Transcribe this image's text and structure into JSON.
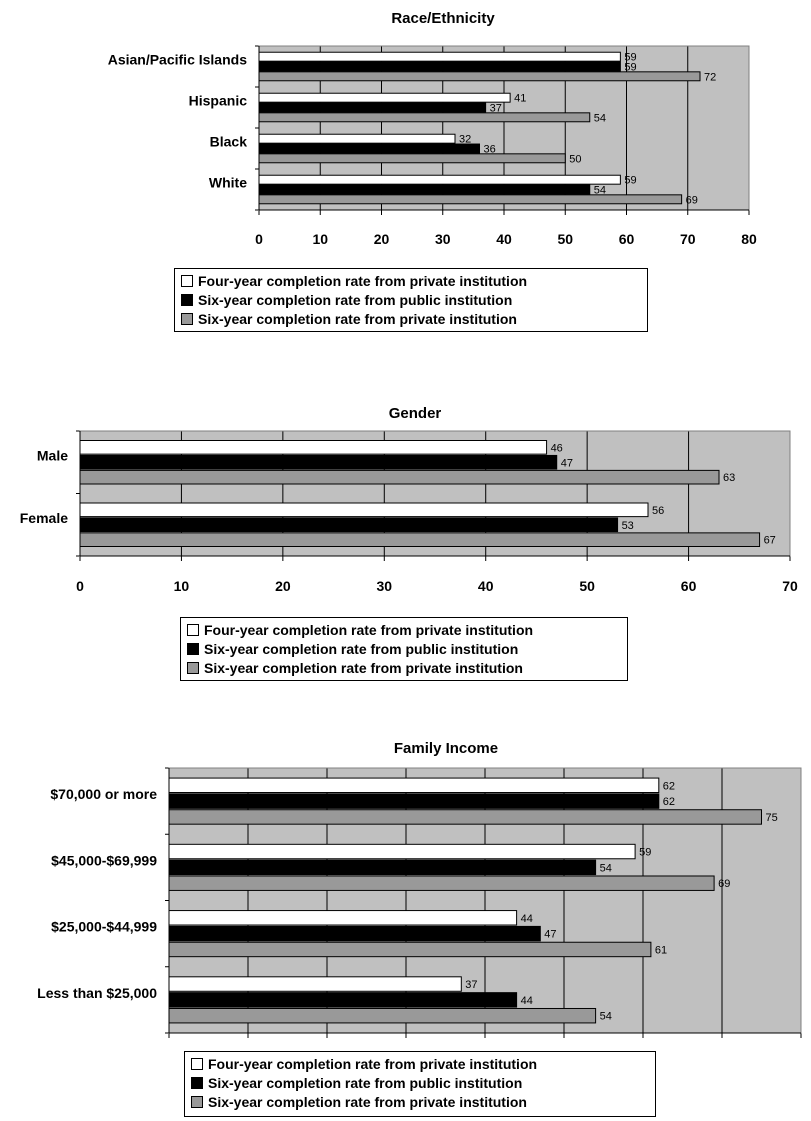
{
  "chart_data": [
    {
      "type": "bar",
      "orientation": "horizontal",
      "title": "Race/Ethnicity",
      "categories": [
        "Asian/Pacific Islands",
        "Hispanic",
        "Black",
        "White"
      ],
      "xlim": [
        0,
        80
      ],
      "ticks": [
        "0",
        "10",
        "20",
        "30",
        "40",
        "50",
        "60",
        "70",
        "80"
      ],
      "grid": true,
      "legend_position": "bottom",
      "series": [
        {
          "name": "Four-year completion rate from private institution",
          "color": "#ffffff",
          "values": [
            59,
            41,
            32,
            59
          ]
        },
        {
          "name": "Six-year completion rate from public institution",
          "color": "#000000",
          "values": [
            59,
            37,
            36,
            54
          ]
        },
        {
          "name": "Six-year completion rate from private institution",
          "color": "#999999",
          "values": [
            72,
            54,
            50,
            69
          ]
        }
      ]
    },
    {
      "type": "bar",
      "orientation": "horizontal",
      "title": "Gender",
      "categories": [
        "Male",
        "Female"
      ],
      "xlim": [
        0,
        70
      ],
      "ticks": [
        "0",
        "10",
        "20",
        "30",
        "40",
        "50",
        "60",
        "70"
      ],
      "grid": true,
      "legend_position": "bottom",
      "series": [
        {
          "name": "Four-year completion rate from private institution",
          "color": "#ffffff",
          "values": [
            46,
            56
          ]
        },
        {
          "name": "Six-year completion rate from public institution",
          "color": "#000000",
          "values": [
            47,
            53
          ]
        },
        {
          "name": "Six-year completion rate from private institution",
          "color": "#999999",
          "values": [
            63,
            67
          ]
        }
      ]
    },
    {
      "type": "bar",
      "orientation": "horizontal",
      "title": "Family Income",
      "categories": [
        "$70,000 or more",
        "$45,000-$69,999",
        "$25,000-$44,999",
        "Less than $25,000"
      ],
      "xlim": [
        0,
        80
      ],
      "ticks": [
        "0",
        "10",
        "20",
        "30",
        "40",
        "50",
        "60",
        "70",
        "80"
      ],
      "grid": true,
      "legend_position": "bottom",
      "series": [
        {
          "name": "Four-year completion rate from private institution",
          "color": "#ffffff",
          "values": [
            62,
            59,
            44,
            37
          ]
        },
        {
          "name": "Six-year completion rate from public institution",
          "color": "#000000",
          "values": [
            62,
            54,
            47,
            44
          ]
        },
        {
          "name": "Six-year completion rate from private institution",
          "color": "#999999",
          "values": [
            75,
            69,
            61,
            54
          ]
        }
      ]
    }
  ]
}
